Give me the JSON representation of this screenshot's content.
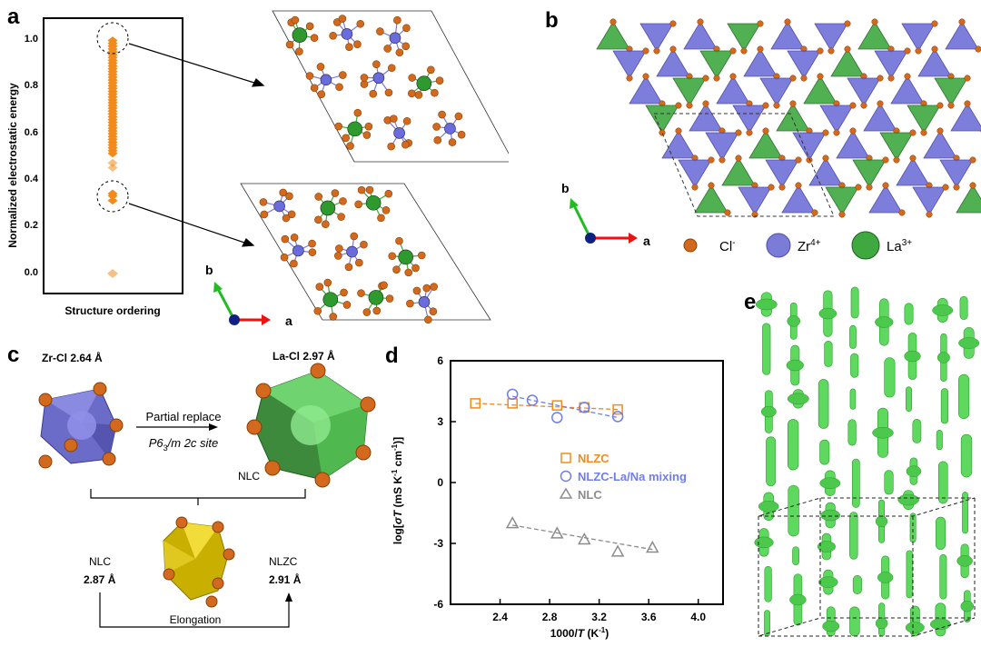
{
  "panels": {
    "a": "a",
    "b": "b",
    "c": "c",
    "d": "d",
    "e": "e"
  },
  "panel_a": {
    "ylabel": "Normalized electrostatic energy",
    "xlabel": "Structure ordering",
    "yticks": [
      "1.0",
      "0.8",
      "0.6",
      "0.4",
      "0.2",
      "0.0"
    ],
    "axes_b": "b",
    "axes_a": "a"
  },
  "panel_b": {
    "axes_b": "b",
    "axes_a": "a",
    "legend": [
      {
        "ion": "Cl",
        "sup": "-",
        "color": "#d2691e"
      },
      {
        "ion": "Zr",
        "sup": "4+",
        "color": "#7b7bd8"
      },
      {
        "ion": "La",
        "sup": "3+",
        "color": "#3fa83f"
      }
    ]
  },
  "panel_c": {
    "zr_label": "Zr-Cl 2.64 Å",
    "la_label": "La-Cl 2.97 Å",
    "replace_label": "Partial replace",
    "site_prefix": "P6",
    "site_sub": "3",
    "site_suffix": "/m 2c site",
    "nlc_tag": "NLC",
    "left_name": "NLC",
    "left_value": "2.87 Å",
    "right_name": "NLZC",
    "right_value": "2.91 Å",
    "elongation": "Elongation"
  },
  "panel_e": {
    "label": "e"
  },
  "chart_data": {
    "type": "scatter",
    "ylabel_prefix": "log[",
    "ylabel_sigma": "σ",
    "ylabel_T": "T",
    "ylabel_units": " (mS K",
    "ylabel_sup1": "-1",
    "ylabel_mid": " cm",
    "ylabel_sup2": "-1",
    "ylabel_end": ")]",
    "xlabel_prefix": "1000/",
    "xlabel_T": "T",
    "xlabel_units": " (K",
    "xlabel_sup": "-1",
    "xlabel_end": ")",
    "xlim": [
      2.0,
      4.2
    ],
    "ylim": [
      -6,
      6
    ],
    "xticks": [
      2.4,
      2.8,
      3.2,
      3.6,
      4.0
    ],
    "yticks": [
      6,
      3,
      0,
      -3,
      -6
    ],
    "legend_position": "center-right",
    "series": [
      {
        "name": "NLZC",
        "marker": "square",
        "color": "#f28a1c",
        "x": [
          2.2,
          2.5,
          2.86,
          3.08,
          3.35
        ],
        "y": [
          3.9,
          3.9,
          3.8,
          3.7,
          3.6
        ],
        "fit": [
          [
            2.2,
            3.9
          ],
          [
            3.35,
            3.6
          ]
        ]
      },
      {
        "name": "NLZC-La/Na mixing",
        "marker": "circle",
        "color": "#6f7ee8",
        "x": [
          2.5,
          2.66,
          2.86,
          3.08,
          3.35
        ],
        "y": [
          4.35,
          4.05,
          3.2,
          3.7,
          3.25
        ],
        "fit": [
          [
            2.5,
            4.25
          ],
          [
            3.35,
            3.2
          ]
        ]
      },
      {
        "name": "NLC",
        "marker": "triangle",
        "color": "#8c8c8c",
        "x": [
          2.5,
          2.86,
          3.08,
          3.35,
          3.63
        ],
        "y": [
          -2.0,
          -2.5,
          -2.8,
          -3.4,
          -3.2
        ],
        "fit": [
          [
            2.5,
            -2.1
          ],
          [
            3.63,
            -3.3
          ]
        ]
      }
    ]
  }
}
